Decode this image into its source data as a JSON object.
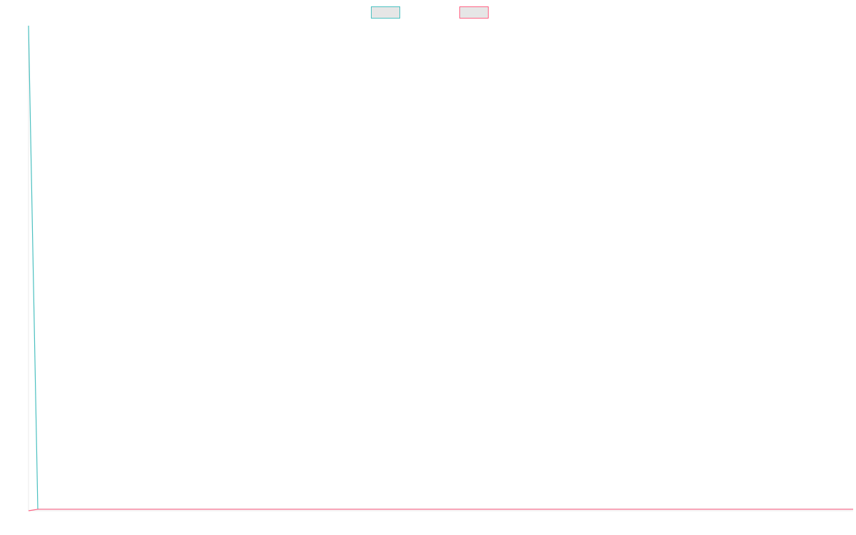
{
  "chart_data": {
    "type": "line",
    "title": "",
    "xlabel": "",
    "ylabel": "",
    "x": [
      0,
      1,
      2,
      3,
      4,
      5,
      6,
      7,
      8,
      9,
      10,
      11,
      12,
      13,
      14,
      15,
      16,
      17,
      18,
      19,
      20,
      21,
      22,
      23,
      24,
      25,
      26,
      27,
      28,
      29,
      30,
      31,
      32,
      33,
      34,
      35,
      36,
      37,
      38,
      39,
      40,
      41,
      42,
      43,
      44,
      45,
      46,
      47,
      48,
      49,
      50,
      51,
      52,
      53,
      54,
      55,
      56,
      57,
      58,
      59,
      60,
      61,
      62,
      63,
      64,
      65,
      66,
      67,
      68,
      69,
      70,
      71,
      72,
      73,
      74,
      75,
      76,
      77,
      78,
      79,
      80,
      81,
      82,
      83,
      84,
      85,
      86,
      87,
      88,
      89
    ],
    "series": [
      {
        "color": "#4bc0c0",
        "fill": "#e6e6e6",
        "values": [
          100,
          0.3,
          0.3,
          0.3,
          0.3,
          0.3,
          0.3,
          0.3,
          0.3,
          0.3,
          0.3,
          0.3,
          0.3,
          0.3,
          0.3,
          0.3,
          0.3,
          0.3,
          0.3,
          0.3,
          0.3,
          0.3,
          0.3,
          0.3,
          0.3,
          0.3,
          0.3,
          0.3,
          0.3,
          0.3,
          0.3,
          0.3,
          0.3,
          0.3,
          0.3,
          0.3,
          0.3,
          0.3,
          0.3,
          0.3,
          0.3,
          0.3,
          0.3,
          0.3,
          0.3,
          0.3,
          0.3,
          0.3,
          0.3,
          0.3,
          0.3,
          0.3,
          0.3,
          0.3,
          0.3,
          0.3,
          0.3,
          0.3,
          0.3,
          0.3,
          0.3,
          0.3,
          0.3,
          0.3,
          0.3,
          0.3,
          0.3,
          0.3,
          0.3,
          0.3,
          0.3,
          0.3,
          0.3,
          0.3,
          0.3,
          0.3,
          0.3,
          0.3,
          0.3,
          0.3,
          0.3,
          0.3,
          0.3,
          0.3,
          0.3,
          0.3,
          0.3,
          0.3,
          0.3,
          0.3
        ]
      },
      {
        "color": "#ff6384",
        "fill": "#e6e6e6",
        "values": [
          0,
          0.3,
          0.3,
          0.3,
          0.3,
          0.3,
          0.3,
          0.3,
          0.3,
          0.3,
          0.3,
          0.3,
          0.3,
          0.3,
          0.3,
          0.3,
          0.3,
          0.3,
          0.3,
          0.3,
          0.3,
          0.3,
          0.3,
          0.3,
          0.3,
          0.3,
          0.3,
          0.3,
          0.3,
          0.3,
          0.3,
          0.3,
          0.3,
          0.3,
          0.3,
          0.3,
          0.3,
          0.3,
          0.3,
          0.3,
          0.3,
          0.3,
          0.3,
          0.3,
          0.3,
          0.3,
          0.3,
          0.3,
          0.3,
          0.3,
          0.3,
          0.3,
          0.3,
          0.3,
          0.3,
          0.3,
          0.3,
          0.3,
          0.3,
          0.3,
          0.3,
          0.3,
          0.3,
          0.3,
          0.3,
          0.3,
          0.3,
          0.3,
          0.3,
          0.3,
          0.3,
          0.3,
          0.3,
          0.3,
          0.3,
          0.3,
          0.3,
          0.3,
          0.3,
          0.3,
          0.3,
          0.3,
          0.3,
          0.3,
          0.3,
          0.3,
          0.3,
          0.3,
          0.3,
          0.3
        ]
      }
    ],
    "ylim": [
      0,
      100
    ],
    "grid": false,
    "legend": "top-center"
  }
}
